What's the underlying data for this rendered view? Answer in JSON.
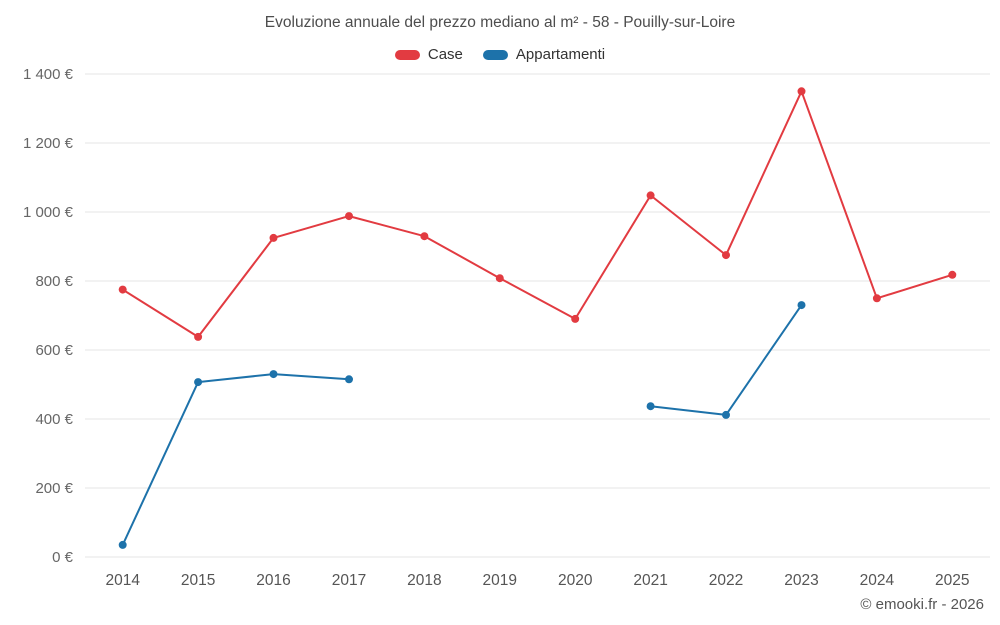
{
  "title": "Evoluzione annuale del prezzo mediano al m² - 58 - Pouilly-sur-Loire",
  "copyright": "© emooki.fr - 2026",
  "chart_data": {
    "type": "line",
    "title": "Evoluzione annuale del prezzo mediano al m² - 58 - Pouilly-sur-Loire",
    "categories": [
      "2014",
      "2015",
      "2016",
      "2017",
      "2018",
      "2019",
      "2020",
      "2021",
      "2022",
      "2023",
      "2024",
      "2025"
    ],
    "series": [
      {
        "name": "Case",
        "color": "#e23b41",
        "values": [
          775,
          638,
          925,
          988,
          930,
          808,
          690,
          1048,
          875,
          1350,
          750,
          818
        ]
      },
      {
        "name": "Appartamenti",
        "color": "#1d72aa",
        "values": [
          35,
          507,
          530,
          515,
          null,
          null,
          null,
          437,
          412,
          730,
          null,
          null
        ]
      }
    ],
    "xlabel": "",
    "ylabel": "",
    "y_unit": "€",
    "ylim": [
      0,
      1400
    ],
    "ytick_step": 200,
    "ytick_labels": [
      "0 €",
      "200 €",
      "400 €",
      "600 €",
      "800 €",
      "1 000 €",
      "1 200 €",
      "1 400 €"
    ],
    "grid": "horizontal",
    "legend_position": "top",
    "grid_color": "#e6e6e6",
    "tick_label_color": "#666666",
    "x_label_color": "#555555"
  }
}
